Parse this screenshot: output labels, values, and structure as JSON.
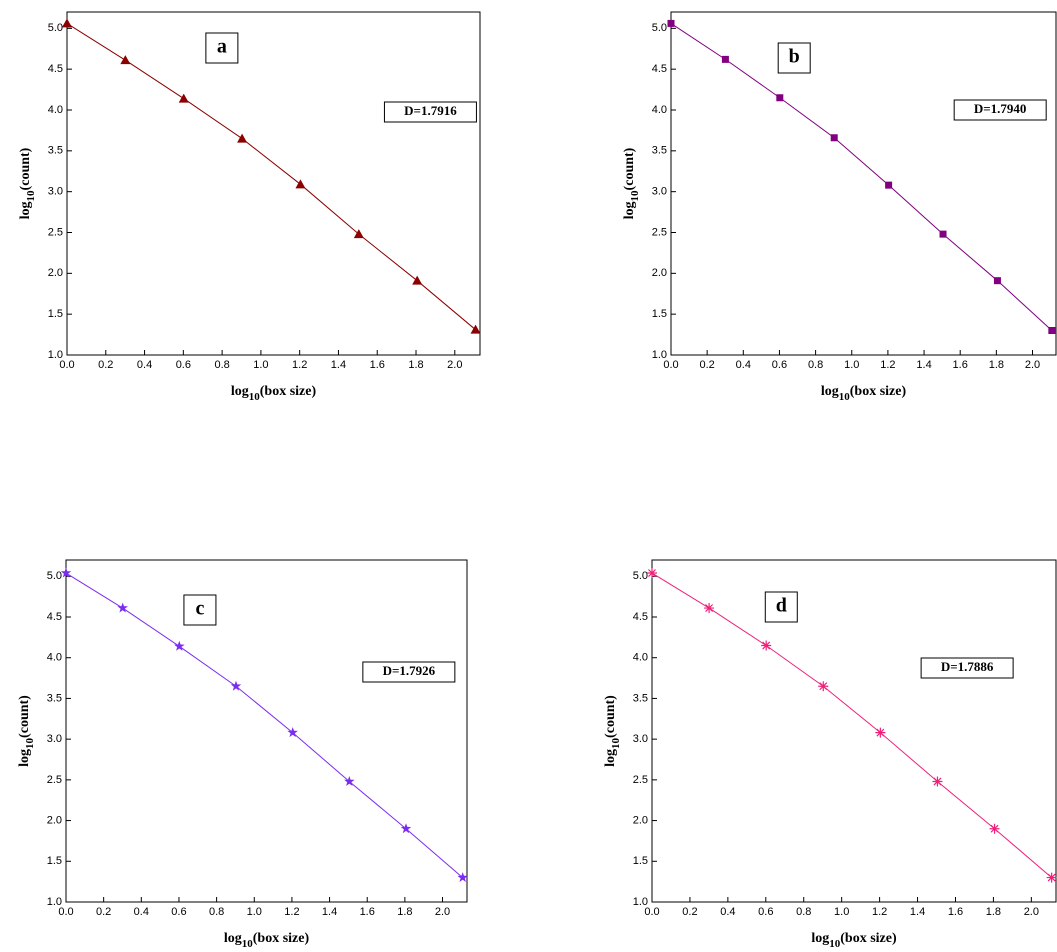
{
  "chart_data": [
    {
      "type": "line",
      "panel_label": "a",
      "annotation": "D=1.7916",
      "marker": "triangle",
      "xlabel": [
        "log",
        "10",
        "(box size)"
      ],
      "ylabel": [
        "log",
        "10",
        "(count)"
      ],
      "x": [
        0,
        0.301,
        0.602,
        0.903,
        1.204,
        1.505,
        1.806,
        2.107
      ],
      "series": [
        {
          "color": "#8b0000",
          "values": [
            5.06,
            4.61,
            4.14,
            3.65,
            3.09,
            2.48,
            1.91,
            1.31
          ]
        }
      ],
      "xlim": [
        0,
        2.13
      ],
      "ylim": [
        1.0,
        5.2
      ],
      "xticks": [
        {
          "value": 0,
          "label": "0.0"
        },
        {
          "value": 0.2,
          "label": "0.2"
        },
        {
          "value": 0.4,
          "label": "0.4"
        },
        {
          "value": 0.6,
          "label": "0.6"
        },
        {
          "value": 0.8,
          "label": "0.8"
        },
        {
          "value": 1,
          "label": "1.0"
        },
        {
          "value": 1.2,
          "label": "1.2"
        },
        {
          "value": 1.4,
          "label": "1.4"
        },
        {
          "value": 1.6,
          "label": "1.6"
        },
        {
          "value": 1.8,
          "label": "1.8"
        },
        {
          "value": 2,
          "label": "2.0"
        }
      ],
      "yticks": [
        {
          "value": 1,
          "label": "1.0"
        },
        1.5,
        {
          "value": 2,
          "label": "2.0"
        },
        2.5,
        {
          "value": 3,
          "label": "3.0"
        },
        3.5,
        {
          "value": 4,
          "label": "4.0"
        },
        4.5,
        {
          "value": 5,
          "label": "5.0"
        }
      ]
    },
    {
      "type": "line",
      "panel_label": "b",
      "annotation": "D=1.7940",
      "marker": "square",
      "xlabel": [
        "log",
        "10",
        "(box size)"
      ],
      "ylabel": [
        "log",
        "10",
        "(count)"
      ],
      "x": [
        0,
        0.301,
        0.602,
        0.903,
        1.204,
        1.505,
        1.806,
        2.107
      ],
      "series": [
        {
          "color": "#800080",
          "values": [
            5.06,
            4.62,
            4.15,
            3.66,
            3.08,
            2.48,
            1.91,
            1.3
          ]
        }
      ],
      "xlim": [
        0,
        2.13
      ],
      "ylim": [
        1.0,
        5.2
      ],
      "xticks": [
        {
          "value": 0,
          "label": "0.0"
        },
        {
          "value": 0.2,
          "label": "0.2"
        },
        {
          "value": 0.4,
          "label": "0.4"
        },
        {
          "value": 0.6,
          "label": "0.6"
        },
        {
          "value": 0.8,
          "label": "0.8"
        },
        {
          "value": 1,
          "label": "1.0"
        },
        {
          "value": 1.2,
          "label": "1.2"
        },
        {
          "value": 1.4,
          "label": "1.4"
        },
        {
          "value": 1.6,
          "label": "1.6"
        },
        {
          "value": 1.8,
          "label": "1.8"
        },
        {
          "value": 2,
          "label": "2.0"
        }
      ],
      "yticks": [
        {
          "value": 1,
          "label": "1.0"
        },
        1.5,
        {
          "value": 2,
          "label": "2.0"
        },
        2.5,
        {
          "value": 3,
          "label": "3.0"
        },
        3.5,
        {
          "value": 4,
          "label": "4.0"
        },
        4.5,
        {
          "value": 5,
          "label": "5.0"
        }
      ]
    },
    {
      "type": "line",
      "panel_label": "c",
      "annotation": "D=1.7926",
      "marker": "star",
      "xlabel": [
        "log",
        "10",
        "(box size)"
      ],
      "ylabel": [
        "log",
        "10",
        "(count)"
      ],
      "x": [
        0,
        0.301,
        0.602,
        0.903,
        1.204,
        1.505,
        1.806,
        2.107
      ],
      "series": [
        {
          "color": "#7b2cf0",
          "values": [
            5.04,
            4.61,
            4.14,
            3.65,
            3.08,
            2.48,
            1.9,
            1.3
          ]
        }
      ],
      "xlim": [
        0,
        2.13
      ],
      "ylim": [
        1.0,
        5.2
      ],
      "xticks": [
        {
          "value": 0,
          "label": "0.0"
        },
        {
          "value": 0.2,
          "label": "0.2"
        },
        {
          "value": 0.4,
          "label": "0.4"
        },
        {
          "value": 0.6,
          "label": "0.6"
        },
        {
          "value": 0.8,
          "label": "0.8"
        },
        {
          "value": 1,
          "label": "1.0"
        },
        {
          "value": 1.2,
          "label": "1.2"
        },
        {
          "value": 1.4,
          "label": "1.4"
        },
        {
          "value": 1.6,
          "label": "1.6"
        },
        {
          "value": 1.8,
          "label": "1.8"
        },
        {
          "value": 2,
          "label": "2.0"
        }
      ],
      "yticks": [
        {
          "value": 1,
          "label": "1.0"
        },
        1.5,
        {
          "value": 2,
          "label": "2.0"
        },
        2.5,
        {
          "value": 3,
          "label": "3.0"
        },
        3.5,
        {
          "value": 4,
          "label": "4.0"
        },
        4.5,
        {
          "value": 5,
          "label": "5.0"
        }
      ]
    },
    {
      "type": "line",
      "panel_label": "d",
      "annotation": "D=1.7886",
      "marker": "asterisk",
      "xlabel": [
        "log",
        "10",
        "(box size)"
      ],
      "ylabel": [
        "log",
        "10",
        "(count)"
      ],
      "x": [
        0,
        0.301,
        0.602,
        0.903,
        1.204,
        1.505,
        1.806,
        2.107
      ],
      "series": [
        {
          "color": "#f0207a",
          "values": [
            5.04,
            4.61,
            4.15,
            3.65,
            3.08,
            2.48,
            1.9,
            1.3
          ]
        }
      ],
      "xlim": [
        0,
        2.13
      ],
      "ylim": [
        1.0,
        5.2
      ],
      "xticks": [
        {
          "value": 0,
          "label": "0.0"
        },
        {
          "value": 0.2,
          "label": "0.2"
        },
        {
          "value": 0.4,
          "label": "0.4"
        },
        {
          "value": 0.6,
          "label": "0.6"
        },
        {
          "value": 0.8,
          "label": "0.8"
        },
        {
          "value": 1,
          "label": "1.0"
        },
        {
          "value": 1.2,
          "label": "1.2"
        },
        {
          "value": 1.4,
          "label": "1.4"
        },
        {
          "value": 1.6,
          "label": "1.6"
        },
        {
          "value": 1.8,
          "label": "1.8"
        },
        {
          "value": 2,
          "label": "2.0"
        }
      ],
      "yticks": [
        {
          "value": 1,
          "label": "1.0"
        },
        1.5,
        {
          "value": 2,
          "label": "2.0"
        },
        2.5,
        {
          "value": 3,
          "label": "3.0"
        },
        3.5,
        {
          "value": 4,
          "label": "4.0"
        },
        4.5,
        {
          "value": 5,
          "label": "5.0"
        }
      ]
    }
  ]
}
